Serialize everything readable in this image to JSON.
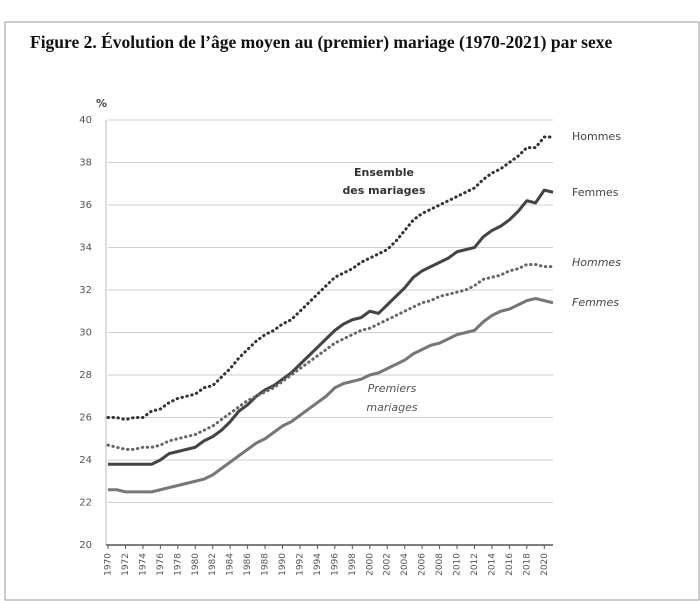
{
  "chart_data": {
    "type": "line",
    "title": "Figure 2. Évolution de l’âge moyen au (premier) mariage (1970-2021) par sexe",
    "y_label": "%",
    "annotations": [
      [
        "Ensemble",
        "des mariages"
      ],
      [
        "Premiers",
        "mariages"
      ]
    ],
    "x": [
      1970,
      1971,
      1972,
      1973,
      1974,
      1975,
      1976,
      1977,
      1978,
      1979,
      1980,
      1981,
      1982,
      1983,
      1984,
      1985,
      1986,
      1987,
      1988,
      1989,
      1990,
      1991,
      1992,
      1993,
      1994,
      1995,
      1996,
      1997,
      1998,
      1999,
      2000,
      2001,
      2002,
      2003,
      2004,
      2005,
      2006,
      2007,
      2008,
      2009,
      2010,
      2011,
      2012,
      2013,
      2014,
      2015,
      2016,
      2017,
      2018,
      2019,
      2020,
      2021
    ],
    "xlim": [
      1970,
      2021
    ],
    "xticks": [
      1970,
      1972,
      1974,
      1976,
      1978,
      1980,
      1982,
      1984,
      1986,
      1988,
      1990,
      1992,
      1994,
      1996,
      1998,
      2000,
      2002,
      2004,
      2006,
      2008,
      2010,
      2012,
      2014,
      2016,
      2018,
      2020
    ],
    "ylim": [
      20,
      40
    ],
    "yticks": [
      20,
      22,
      24,
      26,
      28,
      30,
      32,
      34,
      36,
      38,
      40
    ],
    "grid": true,
    "series": [
      {
        "name": "Hommes",
        "color": "#333333",
        "line_style": "dotted",
        "values": [
          26.0,
          26.0,
          25.9,
          26.0,
          26.0,
          26.3,
          26.4,
          26.7,
          26.9,
          27.0,
          27.1,
          27.4,
          27.5,
          27.9,
          28.3,
          28.8,
          29.2,
          29.6,
          29.9,
          30.1,
          30.4,
          30.6,
          31.0,
          31.4,
          31.8,
          32.2,
          32.6,
          32.8,
          33.0,
          33.3,
          33.5,
          33.7,
          33.9,
          34.3,
          34.8,
          35.3,
          35.6,
          35.8,
          36.0,
          36.2,
          36.4,
          36.6,
          36.8,
          37.2,
          37.5,
          37.7,
          38.0,
          38.3,
          38.7,
          38.7,
          39.2,
          39.2
        ]
      },
      {
        "name": "Femmes",
        "color": "#444444",
        "line_style": "solid",
        "values": [
          23.8,
          23.8,
          23.8,
          23.8,
          23.8,
          23.8,
          24.0,
          24.3,
          24.4,
          24.5,
          24.6,
          24.9,
          25.1,
          25.4,
          25.8,
          26.3,
          26.6,
          27.0,
          27.3,
          27.5,
          27.8,
          28.1,
          28.5,
          28.9,
          29.3,
          29.7,
          30.1,
          30.4,
          30.6,
          30.7,
          31.0,
          30.9,
          31.3,
          31.7,
          32.1,
          32.6,
          32.9,
          33.1,
          33.3,
          33.5,
          33.8,
          33.9,
          34.0,
          34.5,
          34.8,
          35.0,
          35.3,
          35.7,
          36.2,
          36.1,
          36.7,
          36.6
        ]
      },
      {
        "name": "Hommes",
        "color": "#666666",
        "line_style": "dotted",
        "values": [
          24.7,
          24.6,
          24.5,
          24.5,
          24.6,
          24.6,
          24.7,
          24.9,
          25.0,
          25.1,
          25.2,
          25.4,
          25.6,
          25.9,
          26.2,
          26.5,
          26.8,
          27.0,
          27.2,
          27.4,
          27.7,
          28.0,
          28.3,
          28.6,
          28.9,
          29.2,
          29.5,
          29.7,
          29.9,
          30.1,
          30.2,
          30.4,
          30.6,
          30.8,
          31.0,
          31.2,
          31.4,
          31.5,
          31.7,
          31.8,
          31.9,
          32.0,
          32.2,
          32.5,
          32.6,
          32.7,
          32.9,
          33.0,
          33.2,
          33.2,
          33.1,
          33.1
        ]
      },
      {
        "name": "Femmes",
        "color": "#777777",
        "line_style": "solid",
        "values": [
          22.6,
          22.6,
          22.5,
          22.5,
          22.5,
          22.5,
          22.6,
          22.7,
          22.8,
          22.9,
          23.0,
          23.1,
          23.3,
          23.6,
          23.9,
          24.2,
          24.5,
          24.8,
          25.0,
          25.3,
          25.6,
          25.8,
          26.1,
          26.4,
          26.7,
          27.0,
          27.4,
          27.6,
          27.7,
          27.8,
          28.0,
          28.1,
          28.3,
          28.5,
          28.7,
          29.0,
          29.2,
          29.4,
          29.5,
          29.7,
          29.9,
          30.0,
          30.1,
          30.5,
          30.8,
          31.0,
          31.1,
          31.3,
          31.5,
          31.6,
          31.5,
          31.4
        ]
      }
    ]
  }
}
